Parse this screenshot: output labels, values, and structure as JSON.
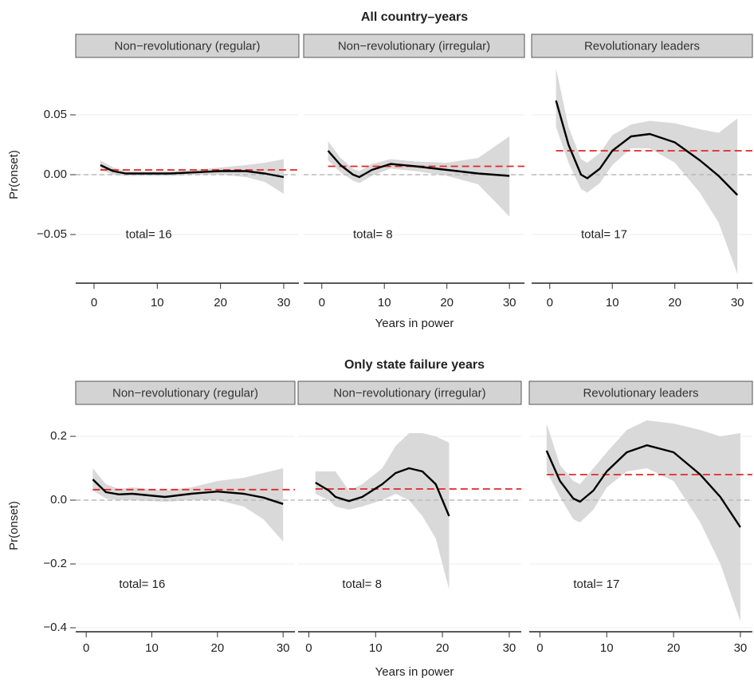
{
  "chart_data": [
    {
      "type": "line",
      "title": "All country–years",
      "x_label": "Years in power",
      "y_label": "Pr(onset)",
      "xlim": [
        -2.9,
        32.4
      ],
      "xticks": [
        0,
        10,
        20,
        30
      ],
      "ylim": [
        -0.09,
        0.09
      ],
      "yticks": [
        {
          "value": -0.05,
          "label": "−0.05"
        },
        {
          "value": 0,
          "label": "0.00"
        },
        0.05
      ],
      "grid": true,
      "zero_line": true,
      "line_color": "#000000",
      "mean_color": "#e3262a",
      "band_color": "#d9d9d9",
      "panels": [
        {
          "title": "Non−revolutionary (regular)",
          "annotation": "total= 16",
          "x": [
            1,
            3,
            5,
            8,
            12,
            16,
            20,
            24,
            27,
            30
          ],
          "values": [
            0.008,
            0.003,
            0.001,
            0.001,
            0.001,
            0.002,
            0.003,
            0.003,
            0.001,
            -0.002
          ],
          "ci_lower": [
            0.004,
            0.0,
            -0.001,
            -0.001,
            -0.001,
            0.0,
            0.0,
            -0.002,
            -0.006,
            -0.016
          ],
          "ci_upper": [
            0.012,
            0.006,
            0.003,
            0.003,
            0.003,
            0.004,
            0.006,
            0.008,
            0.01,
            0.013
          ],
          "mean": 0.004
        },
        {
          "title": "Non−revolutionary (irregular)",
          "annotation": "total= 8",
          "x": [
            1,
            3,
            5,
            6,
            8,
            11,
            15,
            20,
            25,
            30
          ],
          "values": [
            0.02,
            0.008,
            0.0,
            -0.002,
            0.004,
            0.009,
            0.007,
            0.004,
            0.001,
            -0.001
          ],
          "ci_lower": [
            0.012,
            0.002,
            -0.005,
            -0.007,
            -0.001,
            0.005,
            0.003,
            -0.001,
            -0.008,
            -0.035
          ],
          "ci_upper": [
            0.028,
            0.014,
            0.005,
            0.003,
            0.009,
            0.013,
            0.011,
            0.01,
            0.014,
            0.032
          ],
          "mean": 0.007
        },
        {
          "title": "Revolutionary leaders",
          "annotation": "total= 17",
          "x": [
            1,
            3,
            5,
            6,
            8,
            10,
            13,
            16,
            20,
            24,
            27,
            30
          ],
          "values": [
            0.062,
            0.025,
            0.0,
            -0.003,
            0.005,
            0.02,
            0.032,
            0.034,
            0.027,
            0.012,
            -0.001,
            -0.017
          ],
          "ci_lower": [
            0.04,
            0.01,
            -0.012,
            -0.015,
            -0.007,
            0.008,
            0.022,
            0.022,
            0.01,
            -0.015,
            -0.04,
            -0.083
          ],
          "ci_upper": [
            0.089,
            0.04,
            0.013,
            0.01,
            0.018,
            0.033,
            0.042,
            0.045,
            0.043,
            0.038,
            0.035,
            0.047
          ],
          "mean": 0.02
        }
      ]
    },
    {
      "type": "line",
      "title": "Only state failure years",
      "x_label": "Years in power",
      "y_label": "Pr(onset)",
      "xlim": [
        -1.6,
        31.8
      ],
      "xticks": [
        0,
        10,
        20,
        30
      ],
      "ylim": [
        -0.41,
        0.25
      ],
      "yticks": [
        {
          "value": -0.4,
          "label": "−0.4"
        },
        {
          "value": -0.2,
          "label": "−0.2"
        },
        {
          "value": 0,
          "label": "0.0"
        },
        0.2
      ],
      "grid": true,
      "zero_line": true,
      "line_color": "#000000",
      "mean_color": "#e3262a",
      "band_color": "#d9d9d9",
      "panels": [
        {
          "title": "Non−revolutionary (regular)",
          "annotation": "total= 16",
          "x": [
            1,
            3,
            5,
            7,
            12,
            16,
            20,
            24,
            27,
            30
          ],
          "values": [
            0.065,
            0.025,
            0.018,
            0.02,
            0.01,
            0.02,
            0.027,
            0.02,
            0.008,
            -0.012
          ],
          "ci_lower": [
            0.03,
            0.005,
            0.0,
            0.0,
            -0.005,
            0.0,
            0.0,
            -0.02,
            -0.06,
            -0.13
          ],
          "ci_upper": [
            0.1,
            0.05,
            0.035,
            0.04,
            0.03,
            0.04,
            0.06,
            0.07,
            0.085,
            0.1
          ],
          "mean": 0.033
        },
        {
          "title": "Non−revolutionary (irregular)",
          "annotation": "total= 8",
          "x": [
            1,
            3,
            4,
            6,
            8,
            11,
            13,
            15,
            17,
            19,
            21
          ],
          "values": [
            0.055,
            0.03,
            0.01,
            -0.003,
            0.01,
            0.05,
            0.085,
            0.1,
            0.09,
            0.05,
            -0.05
          ],
          "ci_lower": [
            0.02,
            0.0,
            -0.02,
            -0.03,
            -0.02,
            0.0,
            0.02,
            0.0,
            -0.05,
            -0.12,
            -0.28
          ],
          "ci_upper": [
            0.09,
            0.09,
            0.09,
            0.03,
            0.05,
            0.1,
            0.17,
            0.21,
            0.21,
            0.2,
            0.18
          ],
          "mean": 0.035
        },
        {
          "title": "Revolutionary leaders",
          "annotation": "total= 17",
          "x": [
            1,
            3,
            5,
            6,
            8,
            10,
            13,
            16,
            20,
            24,
            27,
            30
          ],
          "values": [
            0.155,
            0.06,
            0.005,
            -0.005,
            0.03,
            0.09,
            0.15,
            0.172,
            0.15,
            0.08,
            0.01,
            -0.085
          ],
          "ci_lower": [
            0.09,
            0.01,
            -0.06,
            -0.07,
            -0.03,
            0.04,
            0.09,
            0.1,
            0.06,
            -0.07,
            -0.2,
            -0.38
          ],
          "ci_upper": [
            0.24,
            0.11,
            0.06,
            0.05,
            0.1,
            0.15,
            0.22,
            0.25,
            0.24,
            0.22,
            0.2,
            0.21
          ],
          "mean": 0.08
        }
      ]
    }
  ]
}
